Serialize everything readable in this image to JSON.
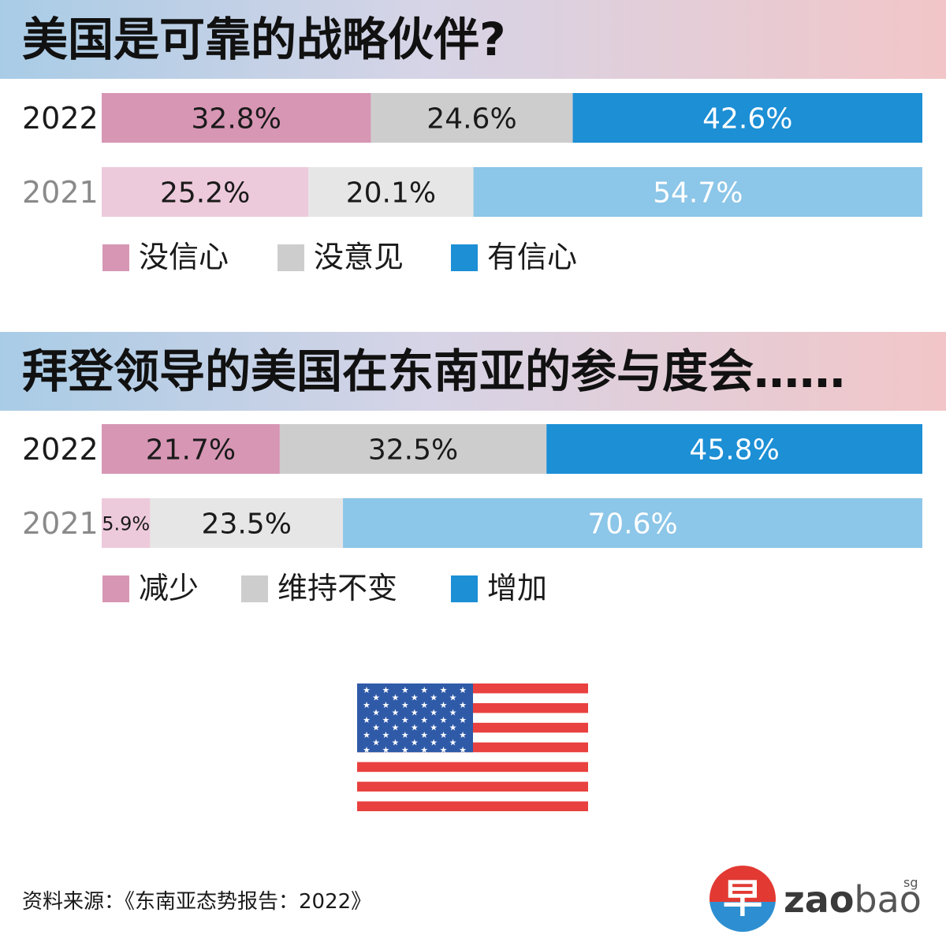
{
  "section1": {
    "title": "美国是可靠的战略伙伴?",
    "rows": [
      {
        "year": "2022",
        "labels": [
          "32.8%",
          "24.6%",
          "42.6%"
        ]
      },
      {
        "year": "2021",
        "labels": [
          "25.2%",
          "20.1%",
          "54.7%"
        ]
      }
    ],
    "legend": [
      "没信心",
      "没意见",
      "有信心"
    ]
  },
  "section2": {
    "title": "拜登领导的美国在东南亚的参与度会……",
    "rows": [
      {
        "year": "2022",
        "labels": [
          "21.7%",
          "32.5%",
          "45.8%"
        ]
      },
      {
        "year": "2021",
        "labels": [
          "5.9%",
          "23.5%",
          "70.6%"
        ]
      }
    ],
    "legend": [
      "减少",
      "维持不变",
      "增加"
    ]
  },
  "colors": {
    "current": [
      "#d796b4",
      "#cdcdcd",
      "#1c8fd5"
    ],
    "previous": [
      "#edcadb",
      "#e6e6e6",
      "#8cc6e8"
    ]
  },
  "chart_data": [
    {
      "type": "bar",
      "title": "美国是可靠的战略伙伴?",
      "categories": [
        "2022",
        "2021"
      ],
      "series": [
        {
          "name": "没信心",
          "values": [
            32.8,
            25.2
          ]
        },
        {
          "name": "没意见",
          "values": [
            24.6,
            20.1
          ]
        },
        {
          "name": "有信心",
          "values": [
            42.6,
            54.7
          ]
        }
      ],
      "stacked": true,
      "orientation": "horizontal",
      "legend": "bottom-left"
    },
    {
      "type": "bar",
      "title": "拜登领导的美国在东南亚的参与度会……",
      "categories": [
        "2022",
        "2021"
      ],
      "series": [
        {
          "name": "减少",
          "values": [
            21.7,
            5.9
          ]
        },
        {
          "name": "维持不变",
          "values": [
            32.5,
            23.5
          ]
        },
        {
          "name": "增加",
          "values": [
            45.8,
            70.6
          ]
        }
      ],
      "stacked": true,
      "orientation": "horizontal",
      "legend": "bottom-left"
    }
  ],
  "flag": {
    "icon": "us-flag-icon"
  },
  "source": "资料来源：《东南亚态势报告：2022》",
  "logo": {
    "glyph": "早",
    "word_bold": "zao",
    "word_light": "bao",
    "sup": "sg"
  }
}
